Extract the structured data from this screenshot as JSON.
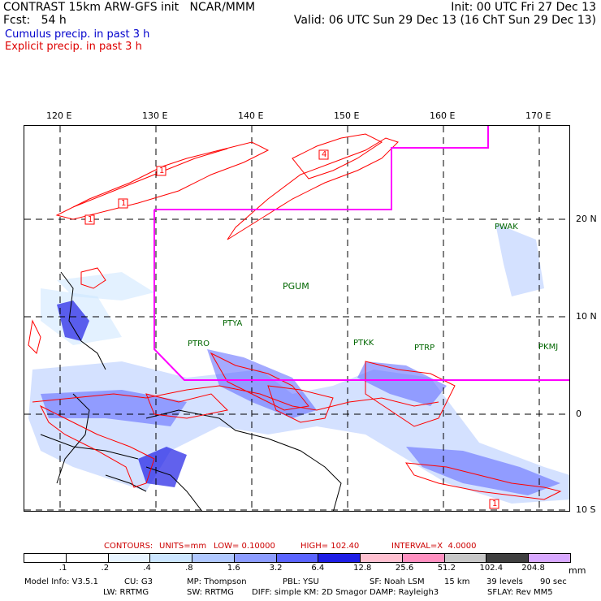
{
  "header": {
    "line1_left": "CONTRAST 15km ARW-GFS init   NCAR/MMM",
    "line1_right": "Init: 00 UTC Fri 27 Dec 13",
    "fcst": "Fcst:   54 h",
    "valid": "Valid: 06 UTC Sun 29 Dec 13 (16 ChT Sun 29 Dec 13)",
    "cumulus": "Cumulus precip. in past 3 h",
    "explicit": "Explicit precip. in past 3 h"
  },
  "colors": {
    "cumulus_text": "#0000cc",
    "explicit_text": "#dd0000",
    "domain_box": "#ff00ff",
    "contour": "#ff0000",
    "station": "#006600"
  },
  "map": {
    "lon_labels": [
      "120 E",
      "130 E",
      "140 E",
      "150 E",
      "160 E",
      "170 E"
    ],
    "lat_labels": [
      "20 N",
      "10 N",
      "0",
      "10 S"
    ],
    "stations": [
      "PWAK",
      "PGUM",
      "PTYA",
      "PTRO",
      "PTKK",
      "PTRP",
      "PKMJ"
    ],
    "box_labels": [
      "1",
      "1",
      "1",
      "4",
      "1"
    ]
  },
  "contours": {
    "label": "CONTOURS:",
    "units": "UNITS=mm",
    "low": "LOW= 0.10000",
    "high": "HIGH= 102.40",
    "interval": "INTERVAL=X  4.0000"
  },
  "colorbar": {
    "ticks": [
      ".1",
      ".2",
      ".4",
      ".8",
      "1.6",
      "3.2",
      "6.4",
      "12.8",
      "25.6",
      "51.2",
      "102.4",
      "204.8"
    ],
    "unit": "mm",
    "colors": [
      "#ffffff",
      "#ffffff",
      "#e8f4ff",
      "#cce6ff",
      "#b0c8ff",
      "#8c9cff",
      "#5a64ff",
      "#1e1ee6",
      "#ffc0d0",
      "#ff90c0",
      "#c8c8c8",
      "#404040",
      "#d8a8ff"
    ]
  },
  "footer": {
    "row1": [
      "Model Info: V3.5.1",
      "CU: G3",
      "MP: Thompson",
      "PBL: YSU",
      "SF: Noah LSM",
      "15 km",
      "39 levels",
      "90 sec"
    ],
    "row2": [
      "LW: RRTMG",
      "SW: RRTMG",
      "DIFF: simple KM: 2D Smagor DAMP: Rayleigh3",
      "SFLAY: Rev MM5"
    ]
  }
}
